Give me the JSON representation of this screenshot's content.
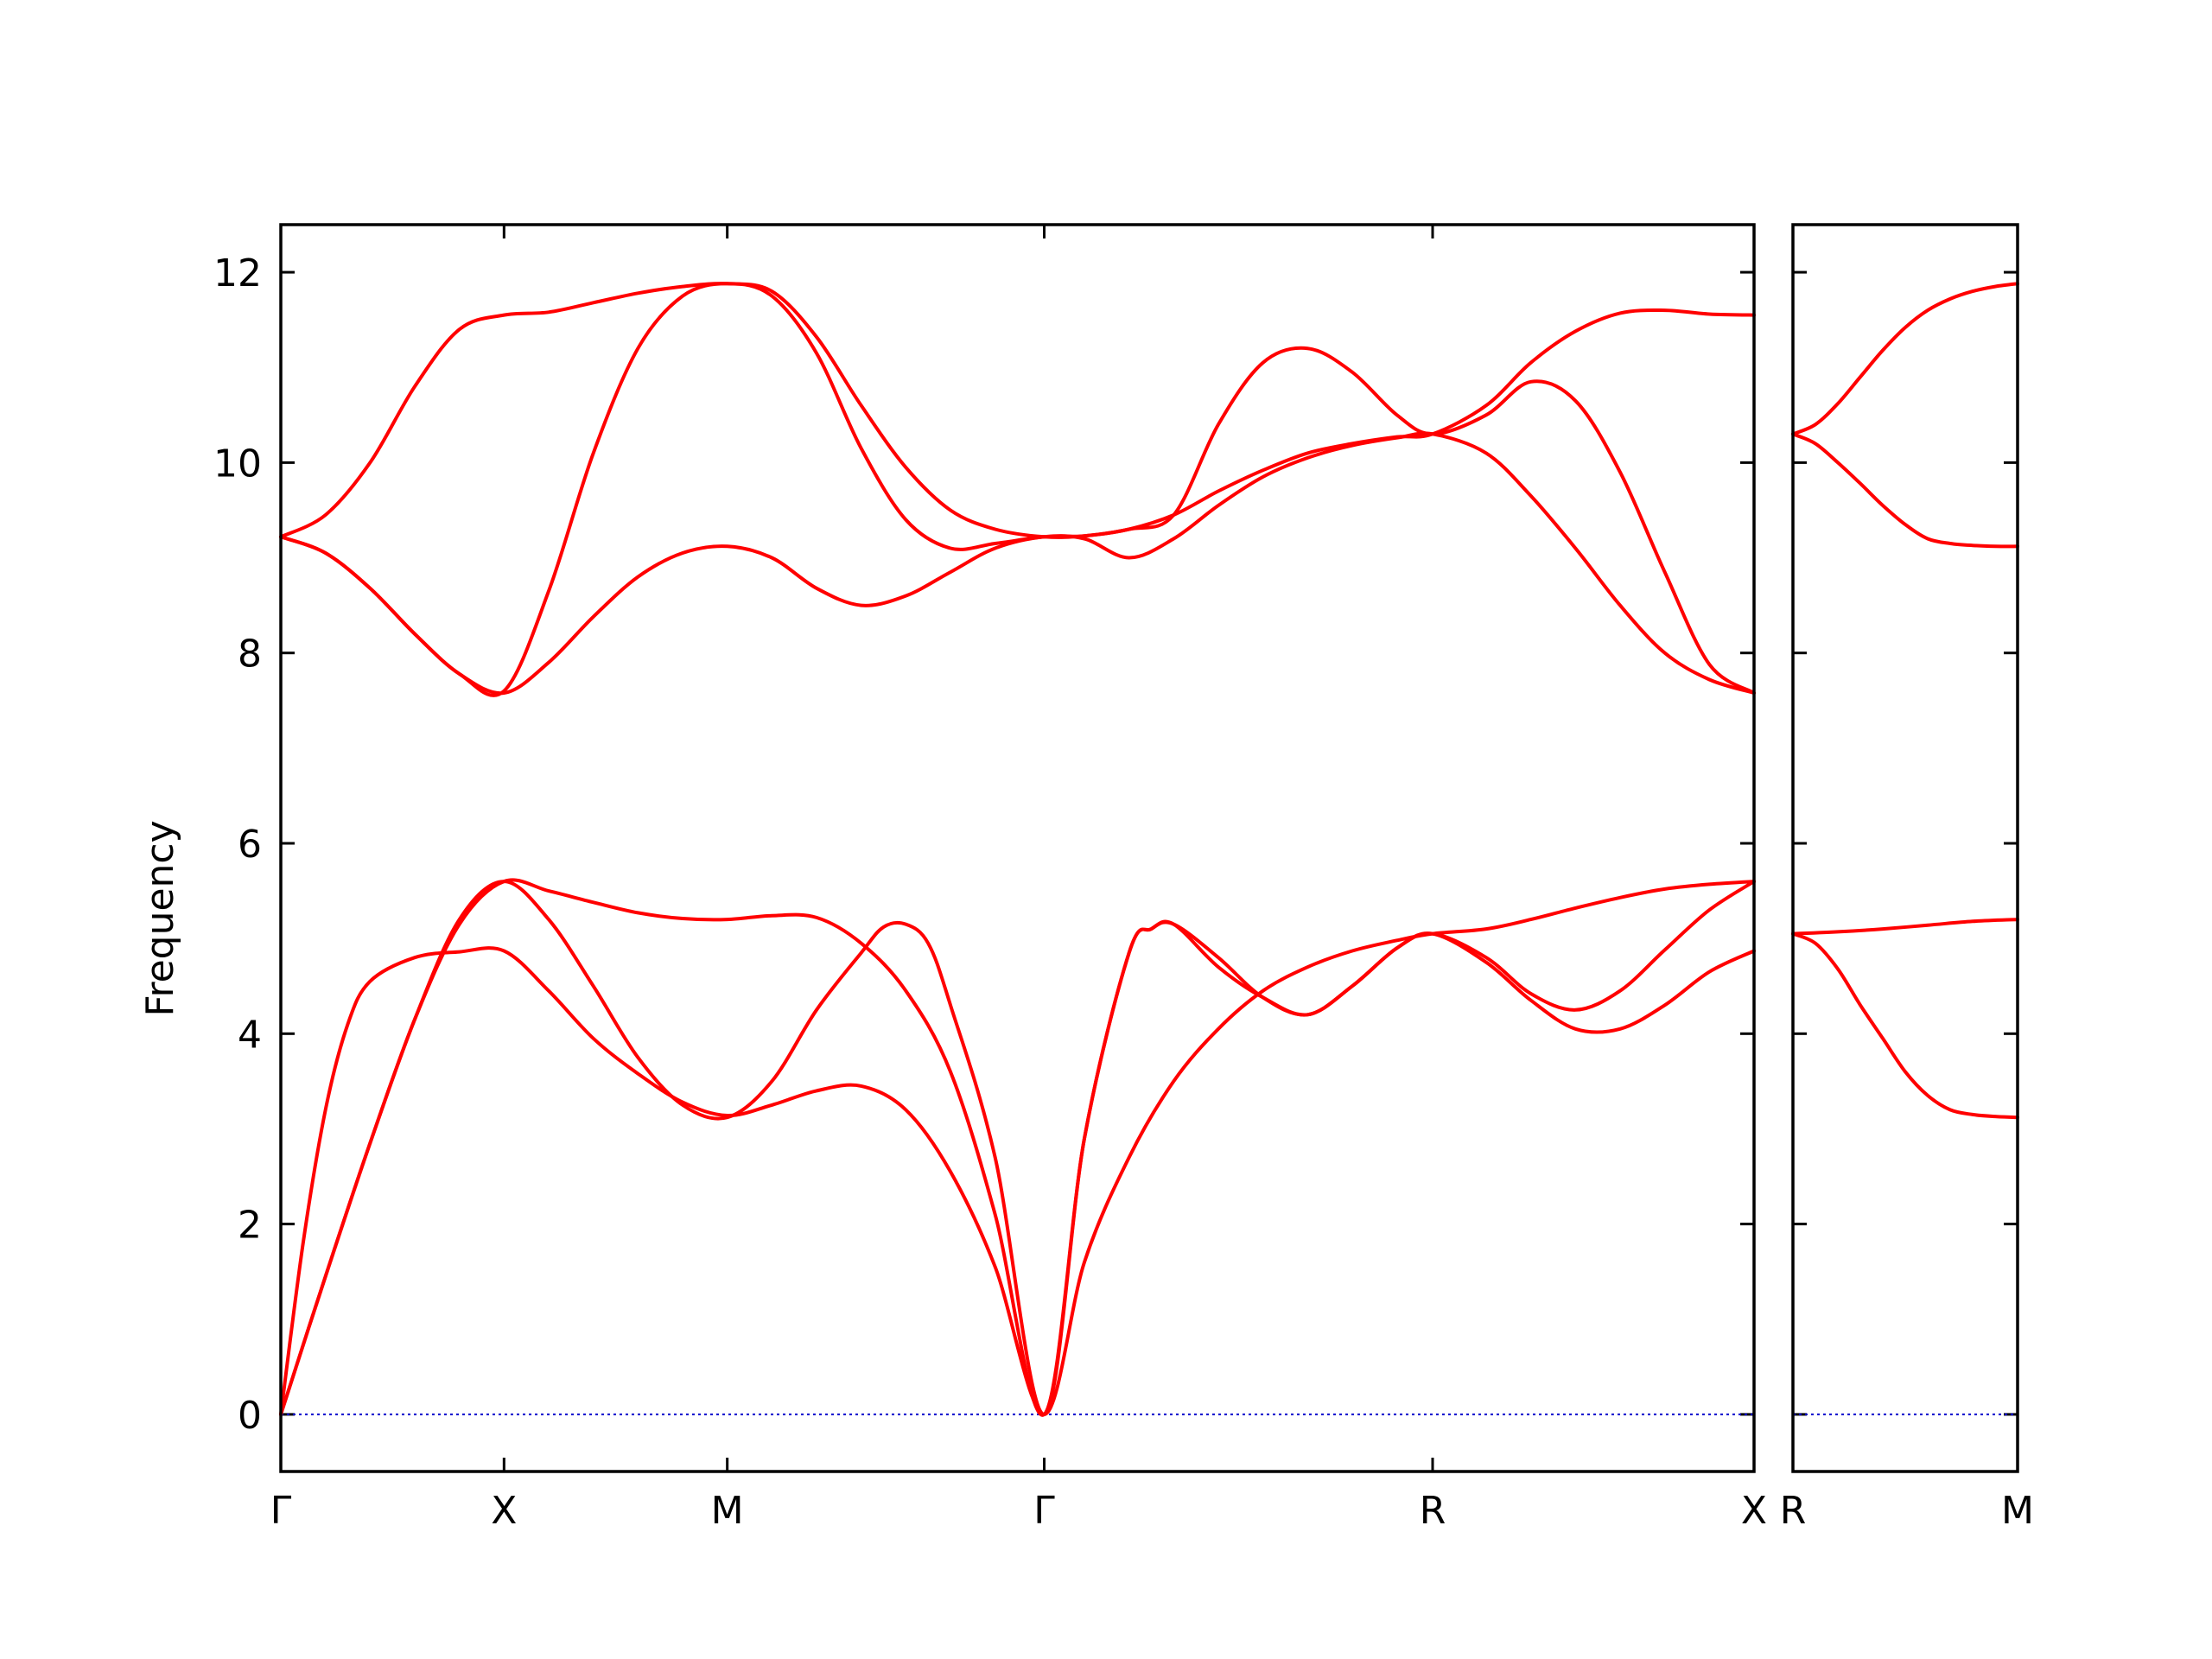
{
  "chart_data": {
    "type": "line",
    "ylabel": "Frequency",
    "ylim": [
      -0.6,
      12.5
    ],
    "yticks": [
      0,
      2,
      4,
      6,
      8,
      10,
      12
    ],
    "grid": false,
    "line_color": "#ff0000",
    "zero_line_color": "#0000cc",
    "panels": [
      {
        "xlim": [
          0,
          3.3
        ],
        "xticks": [
          {
            "x": 0,
            "label": "Γ"
          },
          {
            "x": 0.5,
            "label": "X"
          },
          {
            "x": 1.0,
            "label": "M"
          },
          {
            "x": 1.71,
            "label": "Γ"
          },
          {
            "x": 2.58,
            "label": "R"
          },
          {
            "x": 3.3,
            "label": "X"
          }
        ],
        "bands": [
          [
            [
              0,
              0
            ],
            [
              0.05,
              1.8
            ],
            [
              0.1,
              3.2
            ],
            [
              0.15,
              4.1
            ],
            [
              0.2,
              4.55
            ],
            [
              0.3,
              4.8
            ],
            [
              0.4,
              4.86
            ],
            [
              0.5,
              4.87
            ],
            [
              0.6,
              4.45
            ],
            [
              0.7,
              3.95
            ],
            [
              0.8,
              3.58
            ],
            [
              0.9,
              3.28
            ],
            [
              1.0,
              3.14
            ],
            [
              1.1,
              3.25
            ],
            [
              1.2,
              3.4
            ],
            [
              1.3,
              3.45
            ],
            [
              1.4,
              3.2
            ],
            [
              1.5,
              2.55
            ],
            [
              1.6,
              1.55
            ],
            [
              1.71,
              0
            ],
            [
              1.8,
              1.6
            ],
            [
              1.9,
              2.7
            ],
            [
              2.0,
              3.5
            ],
            [
              2.1,
              4.05
            ],
            [
              2.2,
              4.45
            ],
            [
              2.3,
              4.7
            ],
            [
              2.4,
              4.87
            ],
            [
              2.5,
              4.98
            ],
            [
              2.58,
              5.05
            ],
            [
              2.7,
              5.1
            ],
            [
              2.8,
              5.2
            ],
            [
              2.9,
              5.32
            ],
            [
              3.0,
              5.43
            ],
            [
              3.1,
              5.52
            ],
            [
              3.2,
              5.57
            ],
            [
              3.3,
              5.6
            ]
          ],
          [
            [
              0,
              0
            ],
            [
              0.1,
              1.45
            ],
            [
              0.2,
              2.85
            ],
            [
              0.3,
              4.15
            ],
            [
              0.4,
              5.2
            ],
            [
              0.5,
              5.6
            ],
            [
              0.6,
              5.2
            ],
            [
              0.7,
              4.5
            ],
            [
              0.8,
              3.75
            ],
            [
              0.9,
              3.25
            ],
            [
              1.0,
              3.12
            ],
            [
              1.1,
              3.5
            ],
            [
              1.2,
              4.25
            ],
            [
              1.3,
              4.85
            ],
            [
              1.35,
              5.12
            ],
            [
              1.4,
              5.15
            ],
            [
              1.45,
              4.95
            ],
            [
              1.5,
              4.3
            ],
            [
              1.6,
              2.7
            ],
            [
              1.71,
              0
            ],
            [
              1.8,
              2.9
            ],
            [
              1.9,
              4.85
            ],
            [
              1.95,
              5.1
            ],
            [
              2.0,
              5.15
            ],
            [
              2.1,
              4.8
            ],
            [
              2.2,
              4.38
            ],
            [
              2.3,
              4.2
            ],
            [
              2.4,
              4.5
            ],
            [
              2.5,
              4.9
            ],
            [
              2.58,
              5.05
            ],
            [
              2.7,
              4.75
            ],
            [
              2.8,
              4.35
            ],
            [
              2.9,
              4.05
            ],
            [
              3.0,
              4.05
            ],
            [
              3.1,
              4.3
            ],
            [
              3.2,
              4.65
            ],
            [
              3.3,
              4.87
            ]
          ],
          [
            [
              0,
              0
            ],
            [
              0.1,
              1.45
            ],
            [
              0.2,
              2.85
            ],
            [
              0.3,
              4.15
            ],
            [
              0.4,
              5.15
            ],
            [
              0.5,
              5.6
            ],
            [
              0.6,
              5.5
            ],
            [
              0.7,
              5.38
            ],
            [
              0.8,
              5.27
            ],
            [
              0.9,
              5.21
            ],
            [
              1.0,
              5.2
            ],
            [
              1.1,
              5.24
            ],
            [
              1.2,
              5.22
            ],
            [
              1.3,
              4.95
            ],
            [
              1.4,
              4.45
            ],
            [
              1.5,
              3.6
            ],
            [
              1.6,
              2.1
            ],
            [
              1.71,
              0
            ],
            [
              1.8,
              2.9
            ],
            [
              1.9,
              4.85
            ],
            [
              1.95,
              5.1
            ],
            [
              2.0,
              5.15
            ],
            [
              2.1,
              4.7
            ],
            [
              2.2,
              4.38
            ],
            [
              2.3,
              4.2
            ],
            [
              2.4,
              4.5
            ],
            [
              2.5,
              4.9
            ],
            [
              2.58,
              5.05
            ],
            [
              2.7,
              4.8
            ],
            [
              2.8,
              4.42
            ],
            [
              2.9,
              4.25
            ],
            [
              3.0,
              4.45
            ],
            [
              3.1,
              4.88
            ],
            [
              3.2,
              5.3
            ],
            [
              3.3,
              5.6
            ]
          ],
          [
            [
              0,
              9.22
            ],
            [
              0.1,
              9.05
            ],
            [
              0.2,
              8.68
            ],
            [
              0.3,
              8.2
            ],
            [
              0.4,
              7.78
            ],
            [
              0.5,
              7.58
            ],
            [
              0.6,
              7.9
            ],
            [
              0.7,
              8.38
            ],
            [
              0.8,
              8.8
            ],
            [
              0.9,
              9.05
            ],
            [
              1.0,
              9.12
            ],
            [
              1.1,
              9.0
            ],
            [
              1.2,
              8.68
            ],
            [
              1.3,
              8.5
            ],
            [
              1.4,
              8.6
            ],
            [
              1.5,
              8.85
            ],
            [
              1.6,
              9.1
            ],
            [
              1.71,
              9.22
            ],
            [
              1.8,
              9.2
            ],
            [
              1.9,
              9.0
            ],
            [
              2.0,
              9.2
            ],
            [
              2.1,
              9.55
            ],
            [
              2.2,
              9.85
            ],
            [
              2.3,
              10.05
            ],
            [
              2.4,
              10.18
            ],
            [
              2.5,
              10.26
            ],
            [
              2.58,
              10.3
            ],
            [
              2.7,
              10.1
            ],
            [
              2.8,
              9.65
            ],
            [
              2.9,
              9.1
            ],
            [
              3.0,
              8.5
            ],
            [
              3.1,
              8.0
            ],
            [
              3.2,
              7.72
            ],
            [
              3.3,
              7.58
            ]
          ],
          [
            [
              0,
              9.22
            ],
            [
              0.1,
              9.05
            ],
            [
              0.2,
              8.68
            ],
            [
              0.3,
              8.2
            ],
            [
              0.4,
              7.78
            ],
            [
              0.5,
              7.6
            ],
            [
              0.6,
              8.65
            ],
            [
              0.7,
              10.1
            ],
            [
              0.8,
              11.2
            ],
            [
              0.9,
              11.75
            ],
            [
              1.0,
              11.88
            ],
            [
              1.1,
              11.75
            ],
            [
              1.2,
              11.15
            ],
            [
              1.3,
              10.15
            ],
            [
              1.4,
              9.4
            ],
            [
              1.5,
              9.1
            ],
            [
              1.6,
              9.15
            ],
            [
              1.71,
              9.22
            ],
            [
              1.8,
              9.23
            ],
            [
              1.9,
              9.3
            ],
            [
              2.0,
              9.45
            ],
            [
              2.1,
              10.4
            ],
            [
              2.2,
              11.05
            ],
            [
              2.3,
              11.2
            ],
            [
              2.4,
              10.95
            ],
            [
              2.5,
              10.5
            ],
            [
              2.58,
              10.3
            ],
            [
              2.7,
              10.5
            ],
            [
              2.8,
              10.85
            ],
            [
              2.9,
              10.65
            ],
            [
              3.0,
              9.9
            ],
            [
              3.1,
              8.85
            ],
            [
              3.2,
              7.88
            ],
            [
              3.3,
              7.58
            ]
          ],
          [
            [
              0,
              9.22
            ],
            [
              0.1,
              9.45
            ],
            [
              0.2,
              10.0
            ],
            [
              0.3,
              10.8
            ],
            [
              0.4,
              11.4
            ],
            [
              0.5,
              11.55
            ],
            [
              0.6,
              11.58
            ],
            [
              0.7,
              11.68
            ],
            [
              0.8,
              11.78
            ],
            [
              0.9,
              11.85
            ],
            [
              1.0,
              11.88
            ],
            [
              1.1,
              11.8
            ],
            [
              1.2,
              11.32
            ],
            [
              1.3,
              10.6
            ],
            [
              1.4,
              9.95
            ],
            [
              1.5,
              9.5
            ],
            [
              1.6,
              9.3
            ],
            [
              1.71,
              9.22
            ],
            [
              1.8,
              9.23
            ],
            [
              1.9,
              9.3
            ],
            [
              2.0,
              9.45
            ],
            [
              2.1,
              9.7
            ],
            [
              2.2,
              9.92
            ],
            [
              2.3,
              10.1
            ],
            [
              2.4,
              10.2
            ],
            [
              2.5,
              10.27
            ],
            [
              2.58,
              10.3
            ],
            [
              2.7,
              10.6
            ],
            [
              2.8,
              11.05
            ],
            [
              2.9,
              11.38
            ],
            [
              3.0,
              11.57
            ],
            [
              3.1,
              11.6
            ],
            [
              3.2,
              11.56
            ],
            [
              3.3,
              11.55
            ]
          ]
        ]
      },
      {
        "xlim": [
          0,
          1
        ],
        "xticks": [
          {
            "x": 0,
            "label": "R"
          },
          {
            "x": 1,
            "label": "M"
          }
        ],
        "bands": [
          [
            [
              0,
              5.05
            ],
            [
              0.1,
              4.95
            ],
            [
              0.2,
              4.68
            ],
            [
              0.3,
              4.3
            ],
            [
              0.4,
              3.95
            ],
            [
              0.5,
              3.6
            ],
            [
              0.6,
              3.35
            ],
            [
              0.7,
              3.2
            ],
            [
              0.8,
              3.15
            ],
            [
              0.9,
              3.13
            ],
            [
              1.0,
              3.12
            ]
          ],
          [
            [
              0,
              5.05
            ],
            [
              0.2,
              5.07
            ],
            [
              0.4,
              5.1
            ],
            [
              0.6,
              5.14
            ],
            [
              0.8,
              5.18
            ],
            [
              1.0,
              5.2
            ]
          ],
          [
            [
              0,
              10.3
            ],
            [
              0.1,
              10.2
            ],
            [
              0.2,
              10.0
            ],
            [
              0.3,
              9.78
            ],
            [
              0.4,
              9.55
            ],
            [
              0.5,
              9.35
            ],
            [
              0.6,
              9.2
            ],
            [
              0.7,
              9.15
            ],
            [
              0.8,
              9.13
            ],
            [
              0.9,
              9.12
            ],
            [
              1.0,
              9.12
            ]
          ],
          [
            [
              0,
              10.3
            ],
            [
              0.1,
              10.4
            ],
            [
              0.2,
              10.62
            ],
            [
              0.3,
              10.9
            ],
            [
              0.4,
              11.18
            ],
            [
              0.5,
              11.42
            ],
            [
              0.6,
              11.6
            ],
            [
              0.7,
              11.72
            ],
            [
              0.8,
              11.8
            ],
            [
              0.9,
              11.85
            ],
            [
              1.0,
              11.88
            ]
          ]
        ]
      }
    ]
  }
}
